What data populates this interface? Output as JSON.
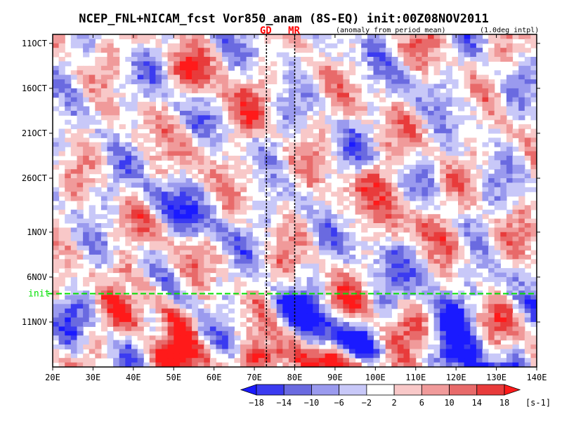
{
  "chart_data": {
    "type": "heatmap",
    "title": "NCEP_FNL+NICAM_fcst Vor850_anam (8S-EQ) init:00Z08NOV2011",
    "subtitle_left": "(anomaly from period mean)",
    "subtitle_right": "(1.0deg intpl)",
    "x_axis": {
      "range": [
        20,
        140
      ],
      "ticks": [
        "20E",
        "30E",
        "40E",
        "50E",
        "60E",
        "70E",
        "80E",
        "90E",
        "100E",
        "110E",
        "120E",
        "130E",
        "140E"
      ],
      "tick_values": [
        20,
        30,
        40,
        50,
        60,
        70,
        80,
        90,
        100,
        110,
        120,
        130,
        140
      ]
    },
    "y_axis": {
      "ticks": [
        "11OCT",
        "16OCT",
        "21OCT",
        "26OCT",
        "1NOV",
        "6NOV",
        "11NOV"
      ],
      "start_day": "10OCT",
      "end_day": "15NOV"
    },
    "init_line": {
      "label": "init",
      "color": "#00e000",
      "day": "8NOV"
    },
    "markers": [
      {
        "label": "GD",
        "lon": 73,
        "color": "#ff0000"
      },
      {
        "label": "MR",
        "lon": 80,
        "color": "#ff0000"
      }
    ],
    "colorbar": {
      "levels": [
        -18,
        -14,
        -10,
        -6,
        -2,
        2,
        6,
        10,
        14,
        18
      ],
      "level_labels": [
        "−18",
        "−14",
        "−10",
        "−6",
        "−2",
        "2",
        "6",
        "10",
        "14",
        "18"
      ],
      "units": "[s-1]",
      "colors": [
        "#1a1aff",
        "#3b3bf0",
        "#6a6ae0",
        "#9a9aee",
        "#c8c8f8",
        "#ffffff",
        "#f8c8c8",
        "#f09a9a",
        "#e86a6a",
        "#e83b3b",
        "#ff1a1a"
      ]
    },
    "anomaly_features": [
      {
        "lon0": 55,
        "lat0": 4,
        "lon1": 68,
        "lat1": 10,
        "sign": 1,
        "strength": 0.7
      },
      {
        "lon0": 45,
        "lat0": 18,
        "lon1": 60,
        "lat1": 22,
        "sign": -1,
        "strength": 0.6
      },
      {
        "lon0": 100,
        "lat0": 16,
        "lon1": 118,
        "lat1": 24,
        "sign": 1,
        "strength": 0.9
      },
      {
        "lon0": 38,
        "lat0": 26,
        "lon1": 52,
        "lat1": 32,
        "sign": 1,
        "strength": 0.7
      },
      {
        "lon0": 80,
        "lat0": 30,
        "lon1": 95,
        "lat1": 35,
        "sign": -1,
        "strength": 0.7
      },
      {
        "lon0": 108,
        "lat0": 24,
        "lon1": 125,
        "lat1": 34,
        "sign": -1,
        "strength": 0.7
      },
      {
        "lon0": 40,
        "lat0": 36,
        "lon1": 80,
        "lat1": 36,
        "sign": 1,
        "strength": 0.4
      },
      {
        "lon0": 45,
        "lat0": 39,
        "lon1": 70,
        "lat1": 42,
        "sign": 1,
        "strength": 1.0
      },
      {
        "lon0": 38,
        "lat0": 40,
        "lon1": 55,
        "lat1": 42,
        "sign": -1,
        "strength": 1.0
      },
      {
        "lon0": 90,
        "lat0": 36,
        "lon1": 110,
        "lat1": 39,
        "sign": 1,
        "strength": 0.8
      },
      {
        "lon0": 120,
        "lat0": 36,
        "lon1": 140,
        "lat1": 41,
        "sign": -1,
        "strength": 0.8
      }
    ]
  }
}
